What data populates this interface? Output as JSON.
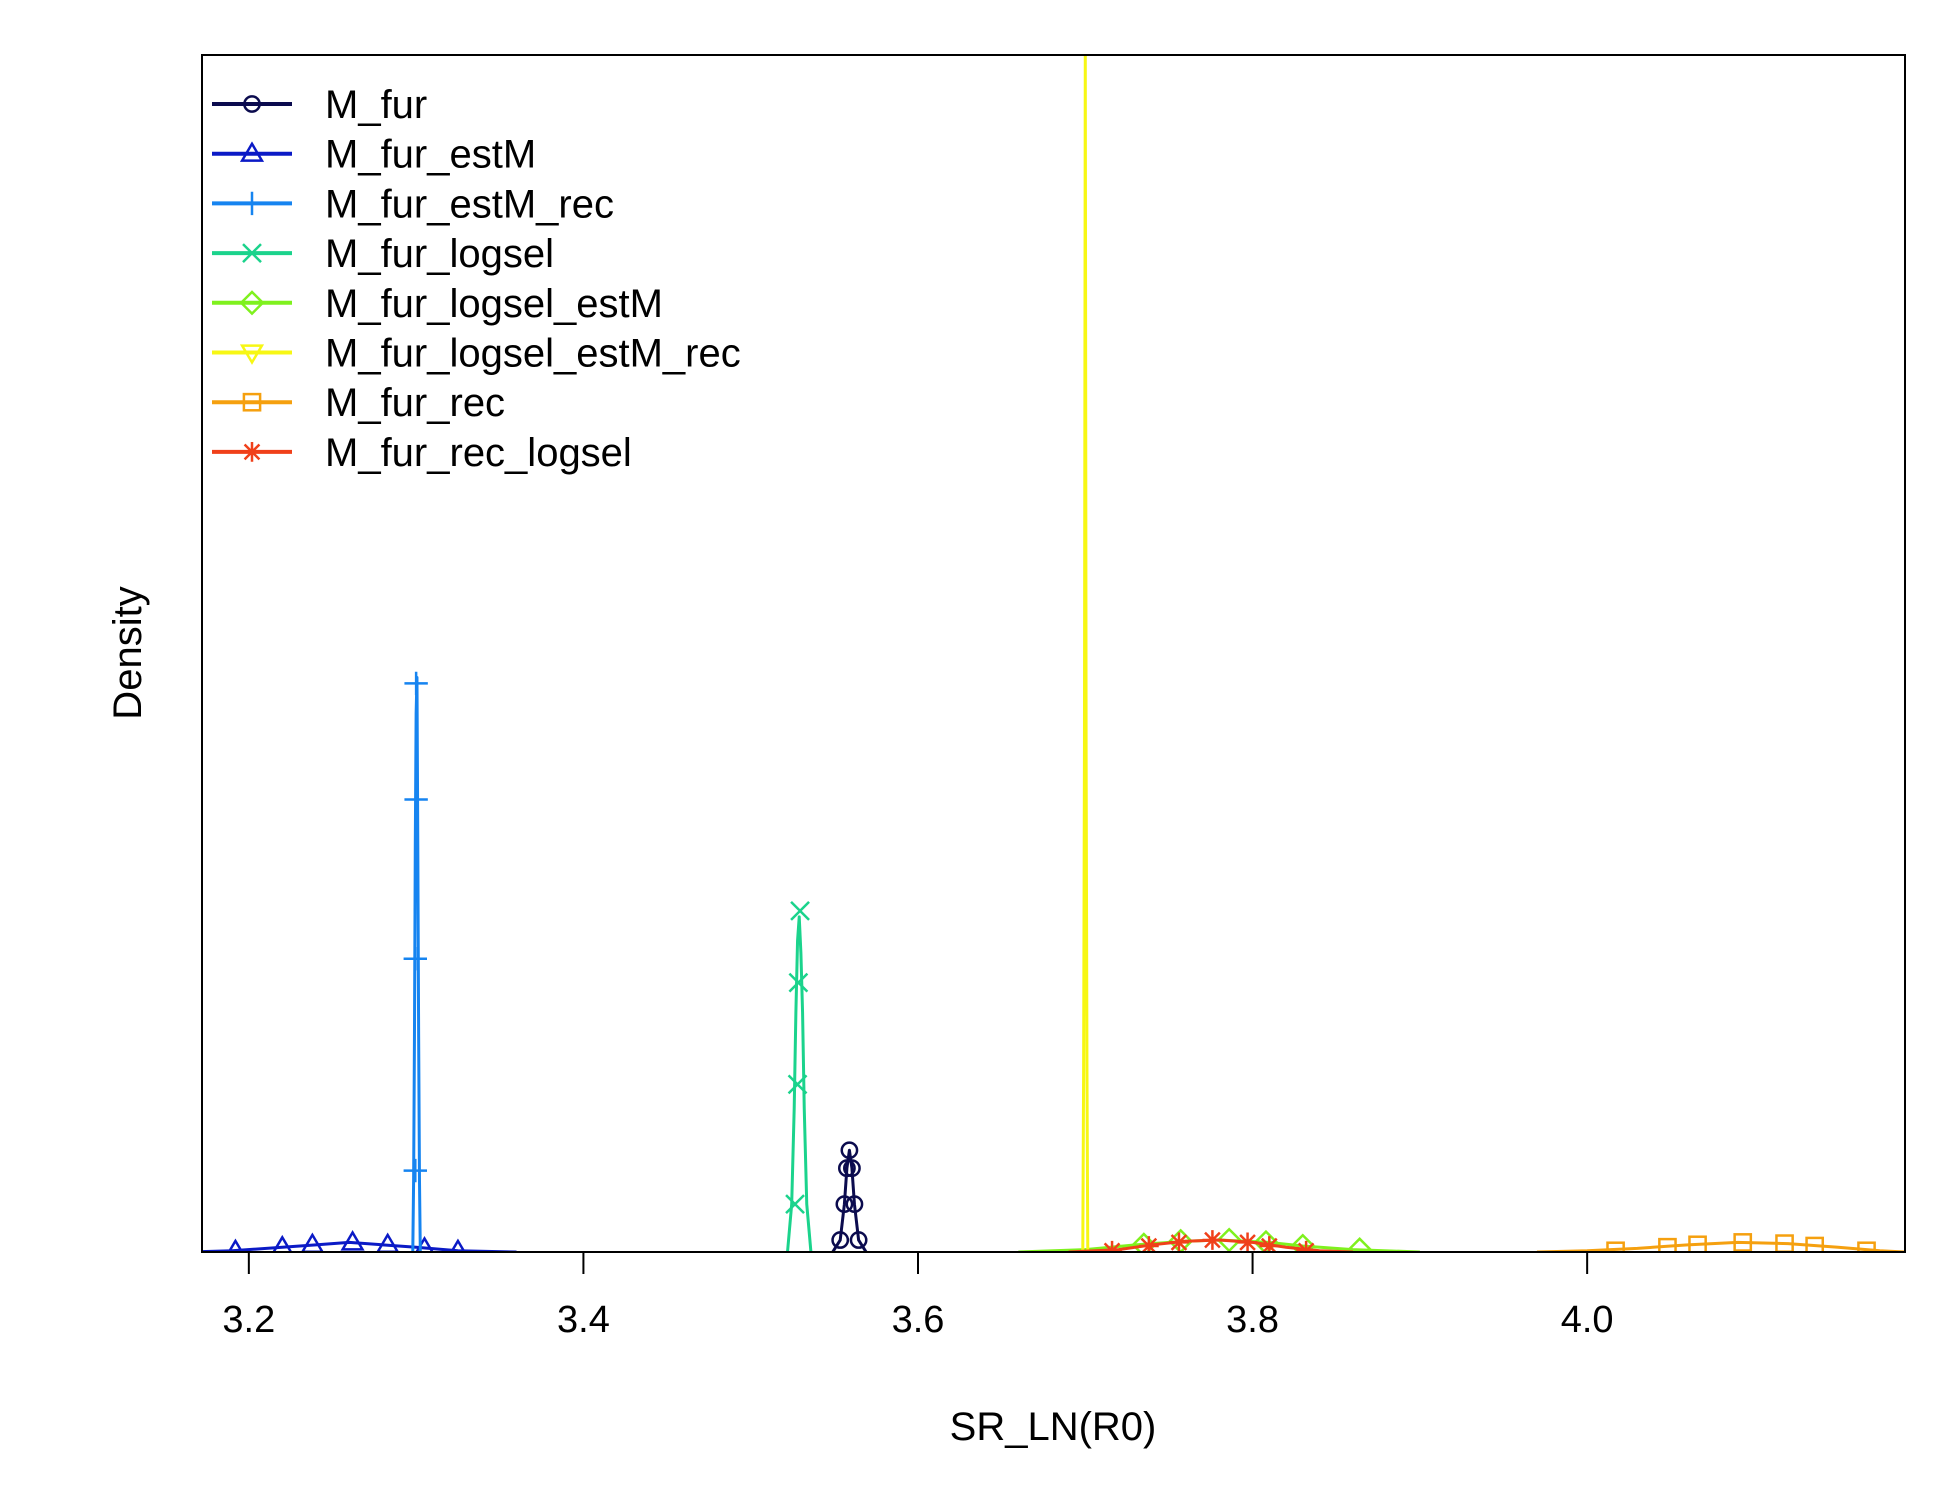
{
  "chart_data": {
    "type": "line",
    "xlabel": "SR_LN(R0)",
    "ylabel": "Density",
    "xlim": [
      3.172,
      4.19
    ],
    "ylim": [
      0,
      1
    ],
    "x_ticks": [
      "3.2",
      "3.4",
      "3.6",
      "3.8",
      "4.0"
    ],
    "y_ticks_shown": false,
    "grid": false,
    "legend_position": "top-left",
    "series": [
      {
        "name": "M_fur",
        "color": "#0B0B4E",
        "marker": "circle",
        "points": [
          [
            3.549,
            0
          ],
          [
            3.5535,
            0.01
          ],
          [
            3.556,
            0.04
          ],
          [
            3.5575,
            0.07
          ],
          [
            3.559,
            0.085
          ],
          [
            3.5605,
            0.07
          ],
          [
            3.562,
            0.04
          ],
          [
            3.5645,
            0.01
          ],
          [
            3.569,
            0
          ]
        ],
        "marker_points": [
          [
            3.5535,
            0.01
          ],
          [
            3.556,
            0.04
          ],
          [
            3.5575,
            0.07
          ],
          [
            3.559,
            0.085
          ],
          [
            3.5605,
            0.07
          ],
          [
            3.562,
            0.04
          ],
          [
            3.5645,
            0.01
          ]
        ]
      },
      {
        "name": "M_fur_estM",
        "color": "#0B1AC6",
        "marker": "triangle",
        "points": [
          [
            3.163,
            0
          ],
          [
            3.19,
            0.001
          ],
          [
            3.22,
            0.004
          ],
          [
            3.24,
            0.006
          ],
          [
            3.26,
            0.008
          ],
          [
            3.28,
            0.006
          ],
          [
            3.3,
            0.004
          ],
          [
            3.325,
            0.001
          ],
          [
            3.36,
            0
          ]
        ],
        "marker_points": [
          [
            3.192,
            0.001
          ],
          [
            3.22,
            0.004
          ],
          [
            3.238,
            0.006
          ],
          [
            3.262,
            0.008
          ],
          [
            3.283,
            0.006
          ],
          [
            3.305,
            0.003
          ],
          [
            3.325,
            0.001
          ]
        ]
      },
      {
        "name": "M_fur_estM_rec",
        "color": "#1684F0",
        "marker": "plus",
        "points": [
          [
            3.298,
            0
          ],
          [
            3.2985,
            0.06
          ],
          [
            3.299,
            0.18
          ],
          [
            3.2995,
            0.34
          ],
          [
            3.3,
            0.45
          ],
          [
            3.3005,
            0.48
          ],
          [
            3.301,
            0.34
          ],
          [
            3.3015,
            0.18
          ],
          [
            3.302,
            0.06
          ],
          [
            3.3025,
            0
          ]
        ],
        "marker_points": [
          [
            3.2995,
            0.068
          ],
          [
            3.2995,
            0.245
          ],
          [
            3.3,
            0.378
          ],
          [
            3.3,
            0.475
          ]
        ]
      },
      {
        "name": "M_fur_logsel",
        "color": "#1BD38C",
        "marker": "cross",
        "points": [
          [
            3.522,
            0
          ],
          [
            3.5245,
            0.04
          ],
          [
            3.526,
            0.12
          ],
          [
            3.527,
            0.2
          ],
          [
            3.528,
            0.26
          ],
          [
            3.529,
            0.28
          ],
          [
            3.53,
            0.25
          ],
          [
            3.531,
            0.2
          ],
          [
            3.532,
            0.12
          ],
          [
            3.5335,
            0.04
          ],
          [
            3.536,
            0
          ]
        ],
        "marker_points": [
          [
            3.5265,
            0.04
          ],
          [
            3.528,
            0.14
          ],
          [
            3.5285,
            0.225
          ],
          [
            3.5295,
            0.285
          ]
        ]
      },
      {
        "name": "M_fur_logsel_estM",
        "color": "#7FF11E",
        "marker": "diamond",
        "points": [
          [
            3.66,
            0
          ],
          [
            3.7,
            0.002
          ],
          [
            3.73,
            0.006
          ],
          [
            3.76,
            0.009
          ],
          [
            3.78,
            0.01
          ],
          [
            3.81,
            0.008
          ],
          [
            3.83,
            0.005
          ],
          [
            3.86,
            0.002
          ],
          [
            3.9,
            0
          ]
        ],
        "marker_points": [
          [
            3.735,
            0.006
          ],
          [
            3.757,
            0.009
          ],
          [
            3.786,
            0.01
          ],
          [
            3.808,
            0.008
          ],
          [
            3.83,
            0.005
          ],
          [
            3.864,
            0.002
          ]
        ]
      },
      {
        "name": "M_fur_logsel_estM_rec",
        "color": "#F7F714",
        "marker": "triangle-down",
        "points": [
          [
            3.6985,
            0
          ],
          [
            3.699,
            0.15
          ],
          [
            3.6995,
            0.42
          ],
          [
            3.7,
            1.0
          ],
          [
            3.7005,
            0.42
          ],
          [
            3.701,
            0.15
          ],
          [
            3.7015,
            0
          ]
        ],
        "marker_points": []
      },
      {
        "name": "M_fur_rec",
        "color": "#F5A00F",
        "marker": "square",
        "points": [
          [
            3.97,
            0
          ],
          [
            4.0,
            0.001
          ],
          [
            4.03,
            0.003
          ],
          [
            4.06,
            0.006
          ],
          [
            4.09,
            0.008
          ],
          [
            4.12,
            0.007
          ],
          [
            4.15,
            0.004
          ],
          [
            4.175,
            0.001
          ],
          [
            4.19,
            0
          ]
        ],
        "marker_points": [
          [
            4.017,
            0.001
          ],
          [
            4.048,
            0.004
          ],
          [
            4.066,
            0.006
          ],
          [
            4.093,
            0.008
          ],
          [
            4.118,
            0.007
          ],
          [
            4.136,
            0.005
          ],
          [
            4.167,
            0.001
          ]
        ]
      },
      {
        "name": "M_fur_rec_logsel",
        "color": "#F0401A",
        "marker": "asterisk",
        "points": [
          [
            3.69,
            0
          ],
          [
            3.72,
            0.002
          ],
          [
            3.74,
            0.006
          ],
          [
            3.76,
            0.009
          ],
          [
            3.78,
            0.01
          ],
          [
            3.8,
            0.008
          ],
          [
            3.82,
            0.004
          ],
          [
            3.84,
            0.001
          ],
          [
            3.86,
            0
          ]
        ],
        "marker_points": [
          [
            3.716,
            0.001
          ],
          [
            3.738,
            0.005
          ],
          [
            3.756,
            0.008
          ],
          [
            3.776,
            0.01
          ],
          [
            3.797,
            0.008
          ],
          [
            3.81,
            0.005
          ],
          [
            3.832,
            0.001
          ]
        ]
      }
    ]
  }
}
